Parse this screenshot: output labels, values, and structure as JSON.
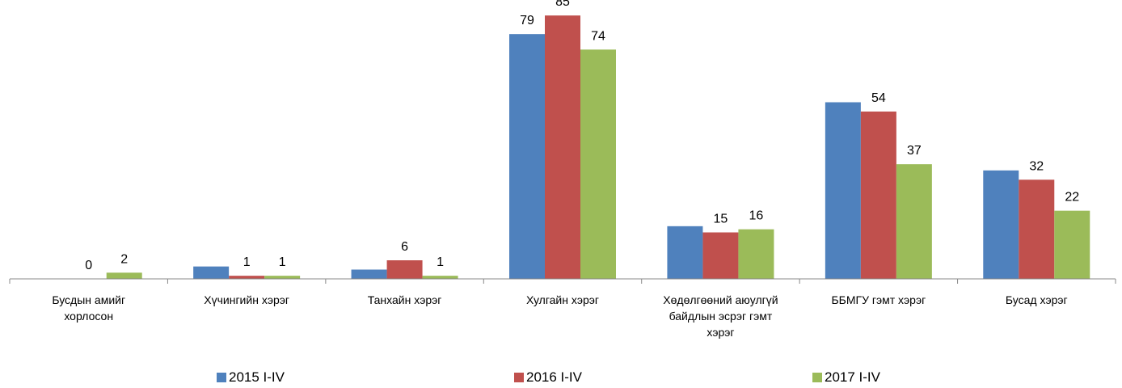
{
  "chart_data": {
    "type": "bar",
    "categories": [
      "Бусдын амийг хорлосон",
      "Хүчингийн хэрэг",
      "Танхайн хэрэг",
      "Хулгайн хэрэг",
      "Хөдөлгөөний аюулгүй байдлын эсрэг гэмт хэрэг",
      "ББМГУ гэмт хэрэг",
      "Бусад хэрэг"
    ],
    "series": [
      {
        "name": "2015 I-IV",
        "color": "#4f81bd",
        "values": [
          0,
          4,
          3,
          79,
          17,
          57,
          35
        ],
        "value_labels": [
          null,
          null,
          null,
          "79",
          null,
          null,
          null
        ]
      },
      {
        "name": "2016 I-IV",
        "color": "#c0504d",
        "values": [
          0,
          1,
          6,
          85,
          15,
          54,
          32
        ],
        "value_labels": [
          "0",
          "1",
          "6",
          "85",
          "15",
          "54",
          "32"
        ]
      },
      {
        "name": "2017 I-IV",
        "color": "#9bbb59",
        "values": [
          2,
          1,
          1,
          74,
          16,
          37,
          22
        ],
        "value_labels": [
          "2",
          "1",
          "1",
          "74",
          "16",
          "37",
          "22"
        ]
      }
    ],
    "ylim": [
      0,
      90
    ],
    "legend": "bottom"
  }
}
